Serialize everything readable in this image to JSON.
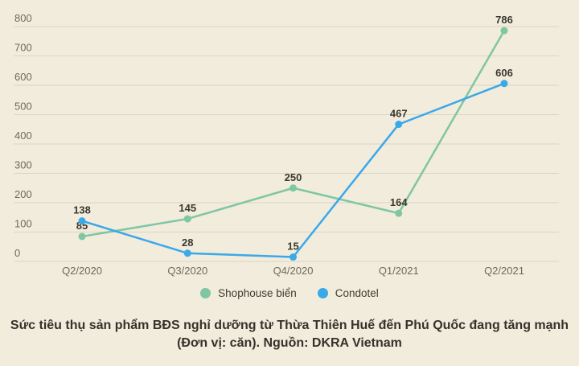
{
  "chart_data": {
    "type": "line",
    "categories": [
      "Q2/2020",
      "Q3/2020",
      "Q4/2020",
      "Q1/2021",
      "Q2/2021"
    ],
    "series": [
      {
        "name": "Shophouse biển",
        "color": "#7fc6a2",
        "values": [
          85,
          145,
          250,
          164,
          786
        ]
      },
      {
        "name": "Condotel",
        "color": "#3aa9e8",
        "values": [
          138,
          28,
          15,
          467,
          606
        ]
      }
    ],
    "ylim": [
      0,
      800
    ],
    "yticks": [
      0,
      100,
      200,
      300,
      400,
      500,
      600,
      700,
      800
    ],
    "grid": true,
    "legend_position": "bottom",
    "title": "Sức tiêu thụ sản phẩm BĐS nghỉ dưỡng từ Thừa Thiên Huế đến Phú Quốc đang tăng mạnh (Đơn vị: căn). Nguồn: DKRA Vietnam"
  },
  "legend": {
    "items": [
      {
        "label": "Shophouse biển",
        "color": "#7fc6a2"
      },
      {
        "label": "Condotel",
        "color": "#3aa9e8"
      }
    ]
  },
  "caption": {
    "line1": "Sức tiêu thụ sản phẩm BĐS nghỉ dưỡng từ Thừa Thiên Huế đến Phú Quốc đang tăng mạnh",
    "line2": "(Đơn vị: căn). Nguồn: DKRA Vietnam"
  },
  "colors": {
    "background": "#f2ecdd",
    "grid": "#dbd5c4",
    "axis_text": "#6e695b",
    "value_label": "#3b382f"
  }
}
